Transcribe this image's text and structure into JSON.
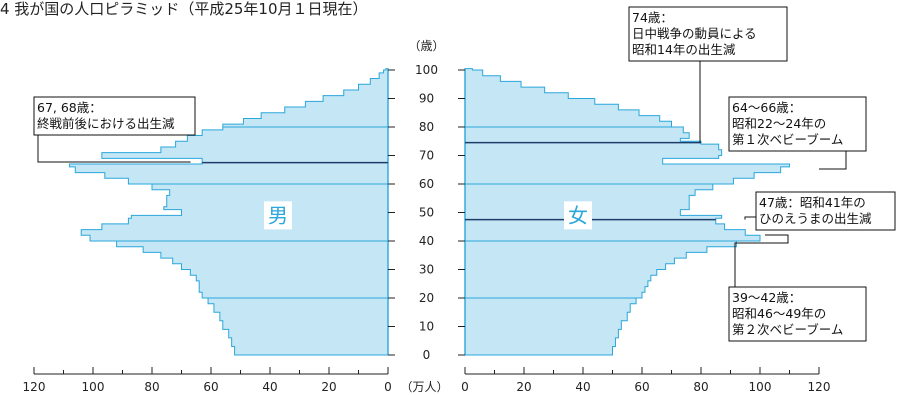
{
  "chart_data": {
    "type": "population-pyramid",
    "title": "4 我が国の人口ピラミッド（平成25年10月１日現在）",
    "age_axis_label": "（歳）",
    "value_axis_label": "（万人）",
    "age_ticks": [
      "0",
      "10",
      "20",
      "30",
      "40",
      "50",
      "60",
      "70",
      "80",
      "90",
      "100"
    ],
    "value_ticks_male": [
      "120",
      "100",
      "80",
      "60",
      "40",
      "20",
      "0"
    ],
    "value_ticks_female": [
      "0",
      "20",
      "40",
      "60",
      "80",
      "100",
      "120"
    ],
    "xlim": [
      0,
      120
    ],
    "ylim": [
      0,
      100
    ],
    "colors": {
      "fill": "#c5e6f5",
      "stroke": "#2aa7db",
      "grid": "#2aa7db",
      "highlight": "#1d3d6b",
      "label": "#2aa7db"
    },
    "series": [
      {
        "name": "男",
        "ages": [
          [
            0,
            52
          ],
          [
            3,
            53
          ],
          [
            6,
            54
          ],
          [
            9,
            56
          ],
          [
            12,
            57
          ],
          [
            15,
            59
          ],
          [
            18,
            61
          ],
          [
            20,
            63
          ],
          [
            22,
            64
          ],
          [
            24,
            64
          ],
          [
            26,
            65
          ],
          [
            28,
            67
          ],
          [
            30,
            70
          ],
          [
            32,
            73
          ],
          [
            34,
            77
          ],
          [
            36,
            83
          ],
          [
            38,
            92
          ],
          [
            40,
            101
          ],
          [
            42,
            104
          ],
          [
            44,
            97
          ],
          [
            46,
            88
          ],
          [
            47,
            88
          ],
          [
            48,
            87
          ],
          [
            49,
            70
          ],
          [
            50,
            70
          ],
          [
            51,
            76
          ],
          [
            52,
            75
          ],
          [
            54,
            75
          ],
          [
            56,
            74
          ],
          [
            58,
            80
          ],
          [
            60,
            88
          ],
          [
            62,
            96
          ],
          [
            64,
            106
          ],
          [
            66,
            108
          ],
          [
            67,
            63
          ],
          [
            68,
            63
          ],
          [
            69,
            97
          ],
          [
            71,
            77
          ],
          [
            73,
            72
          ],
          [
            75,
            68
          ],
          [
            77,
            63
          ],
          [
            79,
            56
          ],
          [
            81,
            49
          ],
          [
            83,
            43
          ],
          [
            85,
            35
          ],
          [
            87,
            28
          ],
          [
            89,
            22
          ],
          [
            91,
            15
          ],
          [
            93,
            10
          ],
          [
            95,
            6
          ],
          [
            97,
            3
          ],
          [
            99,
            1.5
          ],
          [
            100,
            0.7
          ]
        ]
      },
      {
        "name": "女",
        "ages": [
          [
            0,
            50
          ],
          [
            3,
            51
          ],
          [
            6,
            52
          ],
          [
            9,
            53
          ],
          [
            12,
            55
          ],
          [
            15,
            56
          ],
          [
            18,
            58
          ],
          [
            20,
            60
          ],
          [
            22,
            61
          ],
          [
            24,
            62
          ],
          [
            26,
            63
          ],
          [
            28,
            65
          ],
          [
            30,
            68
          ],
          [
            32,
            71
          ],
          [
            34,
            75
          ],
          [
            36,
            82
          ],
          [
            38,
            92
          ],
          [
            40,
            100
          ],
          [
            42,
            95
          ],
          [
            44,
            88
          ],
          [
            46,
            85
          ],
          [
            47,
            85
          ],
          [
            48,
            87
          ],
          [
            49,
            73
          ],
          [
            50,
            73
          ],
          [
            51,
            76
          ],
          [
            52,
            76
          ],
          [
            54,
            76
          ],
          [
            56,
            78
          ],
          [
            58,
            84
          ],
          [
            60,
            91
          ],
          [
            62,
            98
          ],
          [
            64,
            107
          ],
          [
            66,
            110
          ],
          [
            67,
            67
          ],
          [
            68,
            67
          ],
          [
            69,
            86
          ],
          [
            70,
            87
          ],
          [
            72,
            86
          ],
          [
            74,
            80
          ],
          [
            75,
            73
          ],
          [
            76,
            76
          ],
          [
            78,
            74
          ],
          [
            80,
            70
          ],
          [
            82,
            66
          ],
          [
            84,
            59
          ],
          [
            86,
            52
          ],
          [
            88,
            44
          ],
          [
            90,
            35
          ],
          [
            92,
            27
          ],
          [
            94,
            19
          ],
          [
            96,
            12
          ],
          [
            98,
            6
          ],
          [
            100,
            2.5
          ]
        ]
      }
    ],
    "sex_labels": {
      "male": "男",
      "female": "女"
    },
    "annotations": [
      {
        "id": "ann-67-68",
        "lines": [
          "67, 68歳：",
          "終戦前後における出生減"
        ]
      },
      {
        "id": "ann-74",
        "lines": [
          "74歳：",
          "日中戦争の動員による",
          "昭和14年の出生減"
        ]
      },
      {
        "id": "ann-64-66",
        "lines": [
          "64～66歳：",
          "昭和22～24年の",
          "第１次ベビーブーム"
        ]
      },
      {
        "id": "ann-47",
        "lines": [
          "47歳：昭和41年の",
          "ひのえうまの出生減"
        ]
      },
      {
        "id": "ann-39-42",
        "lines": [
          "39～42歳：",
          "昭和46～49年の",
          "第２次ベビーブーム"
        ]
      }
    ]
  }
}
